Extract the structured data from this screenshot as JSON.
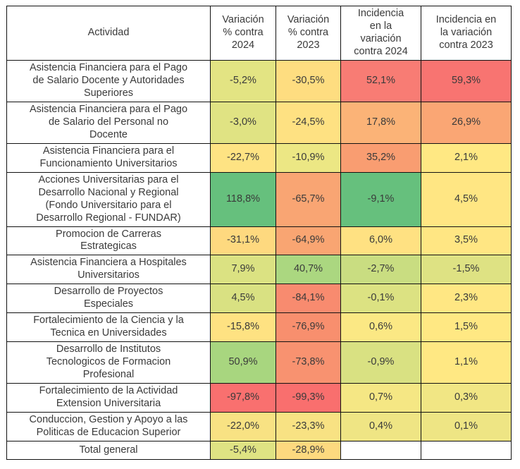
{
  "accent_colors": {
    "scale_low": "#f8696b",
    "scale_mid": "#ffeb84",
    "scale_high": "#63be7b",
    "border": "#111111",
    "text": "#3a3a3a"
  },
  "table": {
    "columns": [
      "Actividad",
      "Variación % contra 2024",
      "Variación % contra 2023",
      "Incidencia en la variación contra 2024",
      "Incidencia en la variación contra 2023"
    ],
    "rows": [
      {
        "actividad": "Asistencia Financiera para el Pago de Salario Docente y Autoridades Superiores",
        "cells": [
          {
            "text": "-5,2%",
            "bg": "#e3e483"
          },
          {
            "text": "-30,5%",
            "bg": "#fedd80"
          },
          {
            "text": "52,1%",
            "bg": "#f87c74"
          },
          {
            "text": "59,3%",
            "bg": "#f87471"
          }
        ]
      },
      {
        "actividad": "Asistencia Financiera para el Pago de Salario del Personal no Docente",
        "cells": [
          {
            "text": "-3,0%",
            "bg": "#e0e383"
          },
          {
            "text": "-24,5%",
            "bg": "#fee182"
          },
          {
            "text": "17,8%",
            "bg": "#fbb377"
          },
          {
            "text": "26,9%",
            "bg": "#faa674"
          }
        ]
      },
      {
        "actividad": "Asistencia Financiera para el Funcionamiento Universitarios",
        "cells": [
          {
            "text": "-22,7%",
            "bg": "#fee383"
          },
          {
            "text": "-10,9%",
            "bg": "#ece784"
          },
          {
            "text": "35,2%",
            "bg": "#f99d71"
          },
          {
            "text": "2,1%",
            "bg": "#ffe883"
          }
        ]
      },
      {
        "actividad": "Acciones Universitarias para el Desarrollo Nacional y Regional (Fondo Universitario para el Desarrollo Regional - FUNDAR)",
        "cells": [
          {
            "text": "118,8%",
            "bg": "#66c07d"
          },
          {
            "text": "-65,7%",
            "bg": "#f9a573"
          },
          {
            "text": "-9,1%",
            "bg": "#66c07d"
          },
          {
            "text": "4,5%",
            "bg": "#ffe683"
          }
        ]
      },
      {
        "actividad": "Promocion de Carreras Estrategicas",
        "cells": [
          {
            "text": "-31,1%",
            "bg": "#fed97f"
          },
          {
            "text": "-64,9%",
            "bg": "#f9a572"
          },
          {
            "text": "6,0%",
            "bg": "#ffe182"
          },
          {
            "text": "3,5%",
            "bg": "#ffe683"
          }
        ]
      },
      {
        "actividad": "Asistencia Financiera a Hospitales Universitarios",
        "cells": [
          {
            "text": "7,9%",
            "bg": "#dbe282"
          },
          {
            "text": "40,7%",
            "bg": "#abd780"
          },
          {
            "text": "-2,7%",
            "bg": "#c9dd81"
          },
          {
            "text": "-1,5%",
            "bg": "#dee283"
          }
        ]
      },
      {
        "actividad": "Desarrollo de Proyectos Especiales",
        "cells": [
          {
            "text": "4,5%",
            "bg": "#d9e182"
          },
          {
            "text": "-84,1%",
            "bg": "#f88b6f"
          },
          {
            "text": "-0,1%",
            "bg": "#dce282"
          },
          {
            "text": "2,3%",
            "bg": "#ffe783"
          }
        ]
      },
      {
        "actividad": "Fortalecimiento de la Ciencia y la Tecnica en Universidades",
        "cells": [
          {
            "text": "-15,8%",
            "bg": "#fee282"
          },
          {
            "text": "-76,9%",
            "bg": "#f88f6e"
          },
          {
            "text": "0,6%",
            "bg": "#fbe884"
          },
          {
            "text": "1,5%",
            "bg": "#ffe883"
          }
        ]
      },
      {
        "actividad": "Desarrollo de Institutos Tecnologicos de Formacion Profesional",
        "cells": [
          {
            "text": "50,9%",
            "bg": "#a8d67f"
          },
          {
            "text": "-73,8%",
            "bg": "#f89270"
          },
          {
            "text": "-0,9%",
            "bg": "#d9e182"
          },
          {
            "text": "1,1%",
            "bg": "#ffe883"
          }
        ]
      },
      {
        "actividad": "Fortalecimiento de la Actividad Extension Universitaria",
        "cells": [
          {
            "text": "-97,8%",
            "bg": "#f9706f"
          },
          {
            "text": "-99,3%",
            "bg": "#f96f6e"
          },
          {
            "text": "0,7%",
            "bg": "#f5e784"
          },
          {
            "text": "0,3%",
            "bg": "#f1e684"
          }
        ]
      },
      {
        "actividad": "Conduccion, Gestion y Apoyo a las Politicas de Educacion Superior",
        "cells": [
          {
            "text": "-22,0%",
            "bg": "#f8e283"
          },
          {
            "text": "-23,3%",
            "bg": "#f8e283"
          },
          {
            "text": "0,4%",
            "bg": "#efe584"
          },
          {
            "text": "0,1%",
            "bg": "#eee584"
          }
        ]
      },
      {
        "actividad": "Total general",
        "total": true,
        "cells": [
          {
            "text": "-5,4%",
            "bg": "#dfe383"
          },
          {
            "text": "-28,9%",
            "bg": "#fdd97f"
          },
          null,
          null
        ]
      }
    ]
  },
  "chart_data": {
    "type": "table",
    "title": "Variación e incidencia por actividad",
    "columns": [
      "Actividad",
      "Variación % contra 2024",
      "Variación % contra 2023",
      "Incidencia en la variación contra 2024",
      "Incidencia en la variación contra 2023"
    ],
    "rows": [
      {
        "actividad": "Asistencia Financiera para el Pago de Salario Docente y Autoridades Superiores",
        "var_2024": -5.2,
        "var_2023": -30.5,
        "inc_2024": 52.1,
        "inc_2023": 59.3
      },
      {
        "actividad": "Asistencia Financiera para el Pago de Salario del Personal no Docente",
        "var_2024": -3.0,
        "var_2023": -24.5,
        "inc_2024": 17.8,
        "inc_2023": 26.9
      },
      {
        "actividad": "Asistencia Financiera para el Funcionamiento Universitarios",
        "var_2024": -22.7,
        "var_2023": -10.9,
        "inc_2024": 35.2,
        "inc_2023": 2.1
      },
      {
        "actividad": "Acciones Universitarias para el Desarrollo Nacional y Regional (Fondo Universitario para el Desarrollo Regional - FUNDAR)",
        "var_2024": 118.8,
        "var_2023": -65.7,
        "inc_2024": -9.1,
        "inc_2023": 4.5
      },
      {
        "actividad": "Promocion de Carreras Estrategicas",
        "var_2024": -31.1,
        "var_2023": -64.9,
        "inc_2024": 6.0,
        "inc_2023": 3.5
      },
      {
        "actividad": "Asistencia Financiera a Hospitales Universitarios",
        "var_2024": 7.9,
        "var_2023": 40.7,
        "inc_2024": -2.7,
        "inc_2023": -1.5
      },
      {
        "actividad": "Desarrollo de Proyectos Especiales",
        "var_2024": 4.5,
        "var_2023": -84.1,
        "inc_2024": -0.1,
        "inc_2023": 2.3
      },
      {
        "actividad": "Fortalecimiento de la Ciencia y la Tecnica en Universidades",
        "var_2024": -15.8,
        "var_2023": -76.9,
        "inc_2024": 0.6,
        "inc_2023": 1.5
      },
      {
        "actividad": "Desarrollo de Institutos Tecnologicos de Formacion Profesional",
        "var_2024": 50.9,
        "var_2023": -73.8,
        "inc_2024": -0.9,
        "inc_2023": 1.1
      },
      {
        "actividad": "Fortalecimiento de la Actividad Extension Universitaria",
        "var_2024": -97.8,
        "var_2023": -99.3,
        "inc_2024": 0.7,
        "inc_2023": 0.3
      },
      {
        "actividad": "Conduccion, Gestion y Apoyo a las Politicas de Educacion Superior",
        "var_2024": -22.0,
        "var_2023": -23.3,
        "inc_2024": 0.4,
        "inc_2023": 0.1
      },
      {
        "actividad": "Total general",
        "var_2024": -5.4,
        "var_2023": -28.9,
        "inc_2024": null,
        "inc_2023": null
      }
    ],
    "layout": {
      "heatmap_color_scale": {
        "low": "#f8696b",
        "mid": "#ffeb84",
        "high": "#63be7b"
      },
      "units": "percent, comma decimal separator",
      "notes": "conditional-formatting heatmap table; total row has no incidencia cells"
    }
  }
}
